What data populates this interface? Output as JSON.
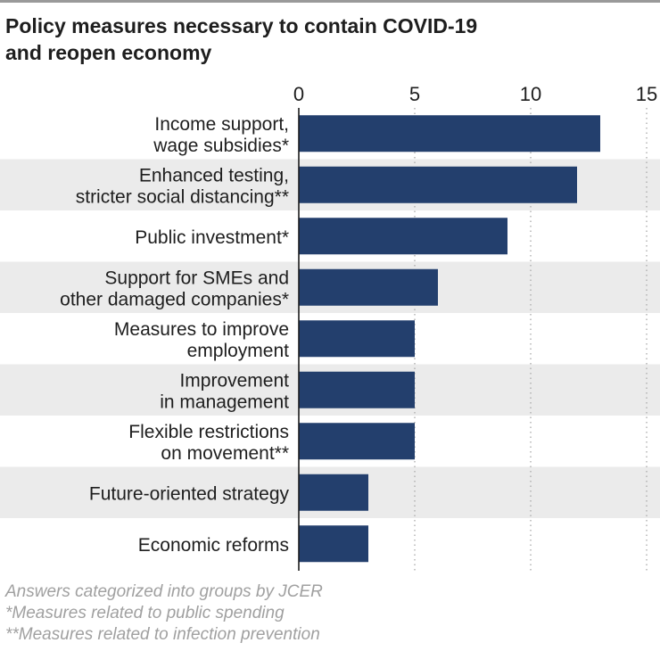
{
  "title_lines": [
    "Policy measures necessary to contain COVID-19",
    "and reopen economy"
  ],
  "notes": [
    "Answers categorized into groups by JCER",
    "*Measures related to public spending",
    "**Measures related to infection prevention"
  ],
  "colors": {
    "bar": "#233f6d",
    "band": "#ebebeb",
    "grid": "#a8a8a8",
    "axis": "#1e1e1e",
    "note": "#a0a0a0"
  },
  "chart_data": {
    "type": "bar",
    "orientation": "horizontal",
    "categories": [
      [
        "Income support,",
        "wage subsidies*"
      ],
      [
        "Enhanced testing,",
        "stricter social distancing**"
      ],
      [
        "Public investment*"
      ],
      [
        "Support for SMEs and",
        "other damaged companies*"
      ],
      [
        "Measures to improve",
        "employment"
      ],
      [
        "Improvement",
        "in management"
      ],
      [
        "Flexible restrictions",
        "on movement**"
      ],
      [
        "Future-oriented strategy"
      ],
      [
        "Economic reforms"
      ]
    ],
    "values": [
      13,
      12,
      9,
      6,
      5,
      5,
      5,
      3,
      3
    ],
    "xlim": [
      0,
      15
    ],
    "xticks": [
      "0",
      "5",
      "10",
      "15"
    ],
    "grid": true,
    "axis_position": "top"
  }
}
